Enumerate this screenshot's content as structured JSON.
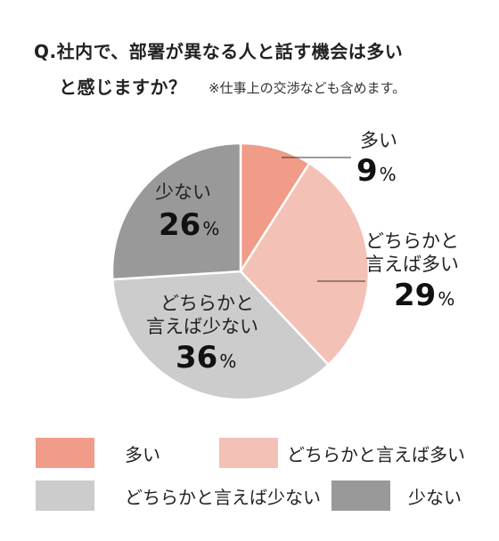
{
  "title": {
    "line1": "Q.社内で、部署が異なる人と話す機会は多い",
    "line2": "と感じますか？",
    "note": "※仕事上の交渉なども含めます。"
  },
  "colors": {
    "many": "#f09c88",
    "somewhat_many": "#f4c1b6",
    "somewhat_few": "#cccccc",
    "few": "#999999"
  },
  "chart_data": {
    "type": "pie",
    "title": "Q.社内で、部署が異なる人と話す機会は多いと感じますか？",
    "subtitle": "※仕事上の交渉なども含めます。",
    "categories": [
      "多い",
      "どちらかと言えば多い",
      "どちらかと言えば少ない",
      "少ない"
    ],
    "values": [
      9,
      29,
      36,
      26
    ],
    "unit": "%",
    "legend_position": "bottom"
  },
  "labels": {
    "many": {
      "line1": "多い",
      "num": "9",
      "unit": "%"
    },
    "somewhat_many": {
      "line1": "どちらかと",
      "line2": "言えば多い",
      "num": "29",
      "unit": "%"
    },
    "somewhat_few": {
      "line1": "どちらかと",
      "line2": "言えば少ない",
      "num": "36",
      "unit": "%"
    },
    "few": {
      "line1": "少ない",
      "num": "26",
      "unit": "%"
    }
  },
  "legend": [
    {
      "label": "多い"
    },
    {
      "label": "どちらかと言えば多い"
    },
    {
      "label": "どちらかと言えば少ない"
    },
    {
      "label": "少ない"
    }
  ]
}
